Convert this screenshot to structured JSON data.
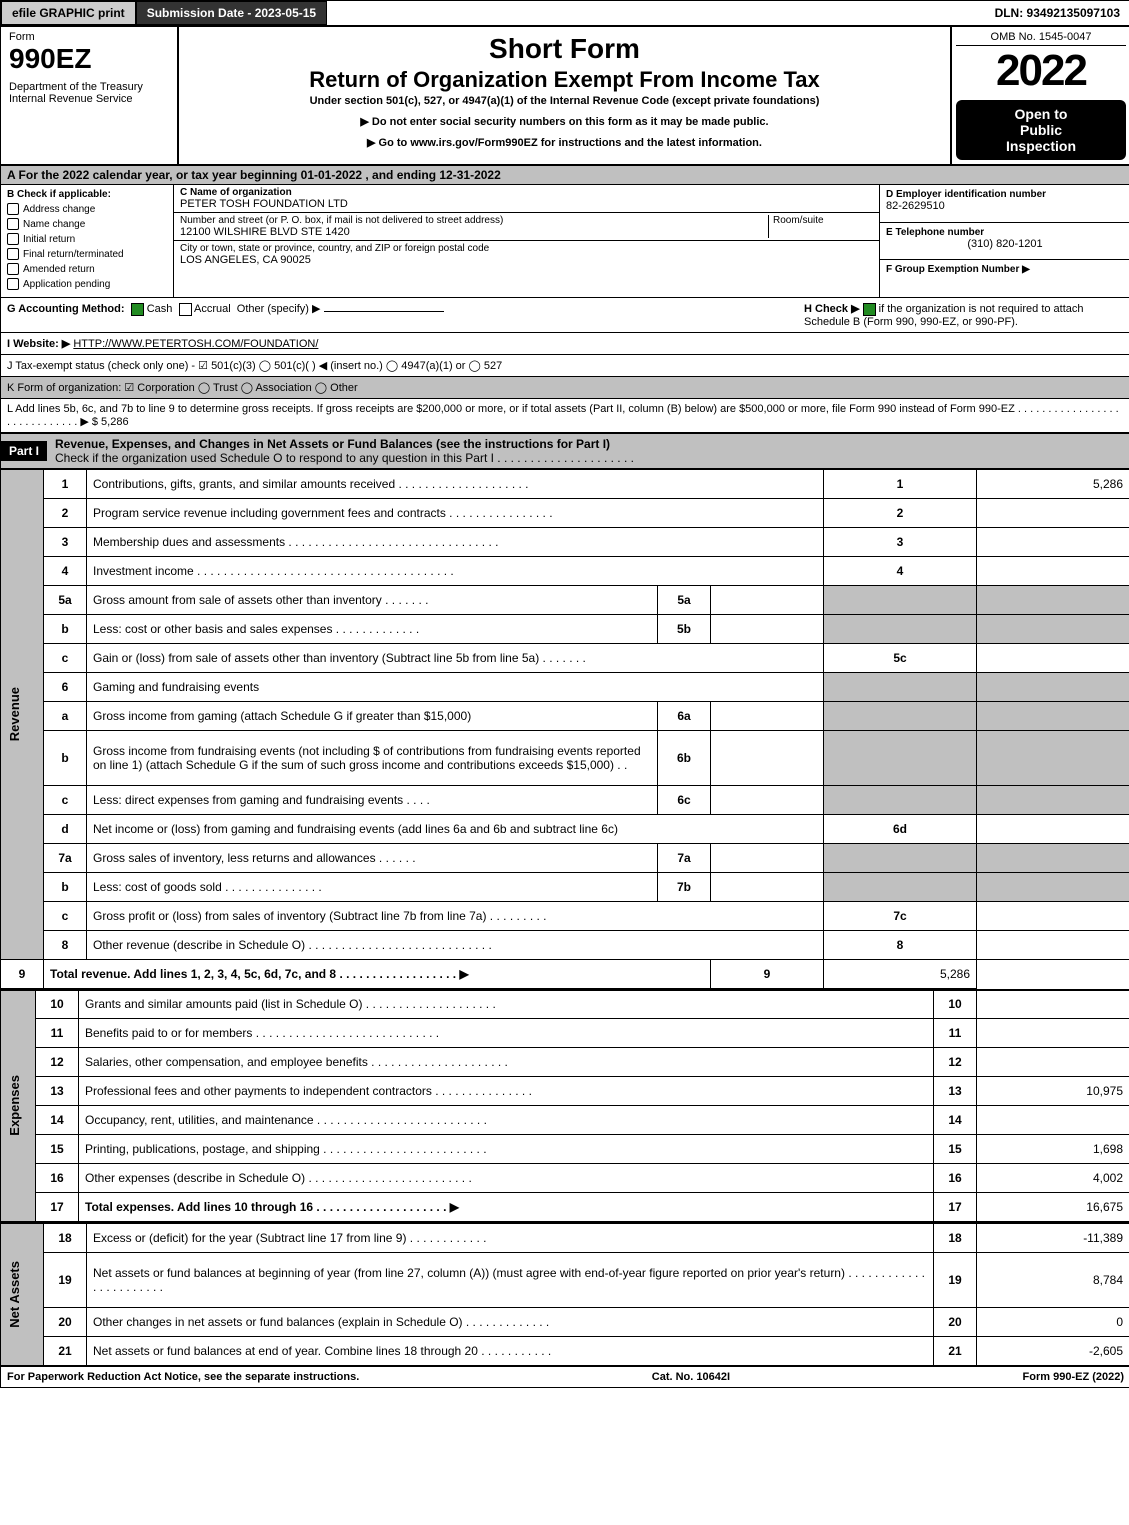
{
  "topbar": {
    "efile_label": "efile GRAPHIC print",
    "submission_label": "Submission Date - 2023-05-15",
    "dln_label": "DLN: 93492135097103"
  },
  "header": {
    "form_word": "Form",
    "form_no": "990EZ",
    "dept": "Department of the Treasury",
    "irs": "Internal Revenue Service",
    "title1": "Short Form",
    "title2": "Return of Organization Exempt From Income Tax",
    "subtitle": "Under section 501(c), 527, or 4947(a)(1) of the Internal Revenue Code (except private foundations)",
    "note1": "▶ Do not enter social security numbers on this form as it may be made public.",
    "note2": "▶ Go to www.irs.gov/Form990EZ for instructions and the latest information.",
    "omb": "OMB No. 1545-0047",
    "year": "2022",
    "open1": "Open to",
    "open2": "Public",
    "open3": "Inspection"
  },
  "row_a": "A  For the 2022 calendar year, or tax year beginning 01-01-2022 , and ending 12-31-2022",
  "section_b": {
    "b_label": "B  Check if applicable:",
    "options": [
      "Address change",
      "Name change",
      "Initial return",
      "Final return/terminated",
      "Amended return",
      "Application pending"
    ],
    "c_label": "C Name of organization",
    "c_value": "PETER TOSH FOUNDATION LTD",
    "street_label": "Number and street (or P. O. box, if mail is not delivered to street address)",
    "street_value": "12100 WILSHIRE BLVD STE 1420",
    "room_label": "Room/suite",
    "city_label": "City or town, state or province, country, and ZIP or foreign postal code",
    "city_value": "LOS ANGELES, CA  90025",
    "d_label": "D Employer identification number",
    "d_value": "82-2629510",
    "e_label": "E Telephone number",
    "e_value": "(310) 820-1201",
    "f_label": "F Group Exemption Number  ▶"
  },
  "g_h": {
    "g_label": "G Accounting Method:",
    "g_cash": "Cash",
    "g_accrual": "Accrual",
    "g_other": "Other (specify) ▶",
    "h_label": "H  Check ▶",
    "h_text": "if the organization is not required to attach Schedule B (Form 990, 990-EZ, or 990-PF)."
  },
  "i": {
    "label": "I Website: ▶",
    "value": "HTTP://WWW.PETERTOSH.COM/FOUNDATION/"
  },
  "j": "J Tax-exempt status (check only one) - ☑ 501(c)(3)  ◯ 501(c)(  ) ◀ (insert no.)  ◯ 4947(a)(1) or  ◯ 527",
  "k": "K Form of organization:  ☑ Corporation  ◯ Trust  ◯ Association  ◯ Other",
  "l": {
    "text": "L Add lines 5b, 6c, and 7b to line 9 to determine gross receipts. If gross receipts are $200,000 or more, or if total assets (Part II, column (B) below) are $500,000 or more, file Form 990 instead of Form 990-EZ . . . . . . . . . . . . . . . . . . . . . . . . . . . . .  ▶ $",
    "amount": "5,286"
  },
  "part1": {
    "header_label": "Part I",
    "title": "Revenue, Expenses, and Changes in Net Assets or Fund Balances (see the instructions for Part I)",
    "check_label": "Check if the organization used Schedule O to respond to any question in this Part I . . . . . . . . . . . . . . . . . . . . .",
    "checked": true
  },
  "sections": {
    "revenue_label": "Revenue",
    "expenses_label": "Expenses",
    "netassets_label": "Net Assets"
  },
  "lines": [
    {
      "n": "1",
      "desc": "Contributions, gifts, grants, and similar amounts received . . . . . . . . . . . . . . . . . . . .",
      "box": "1",
      "amt": "5,286"
    },
    {
      "n": "2",
      "desc": "Program service revenue including government fees and contracts . . . . . . . . . . . . . . . .",
      "box": "2",
      "amt": ""
    },
    {
      "n": "3",
      "desc": "Membership dues and assessments . . . . . . . . . . . . . . . . . . . . . . . . . . . . . . . .",
      "box": "3",
      "amt": ""
    },
    {
      "n": "4",
      "desc": "Investment income . . . . . . . . . . . . . . . . . . . . . . . . . . . . . . . . . . . . . . .",
      "box": "4",
      "amt": ""
    },
    {
      "n": "5a",
      "desc": "Gross amount from sale of assets other than inventory . . . . . . .",
      "sub": "5a",
      "subamt": "",
      "box": "",
      "amt": "",
      "grey": true
    },
    {
      "n": "b",
      "desc": "Less: cost or other basis and sales expenses . . . . . . . . . . . . .",
      "sub": "5b",
      "subamt": "",
      "box": "",
      "amt": "",
      "grey": true
    },
    {
      "n": "c",
      "desc": "Gain or (loss) from sale of assets other than inventory (Subtract line 5b from line 5a) . . . . . . .",
      "box": "5c",
      "amt": ""
    },
    {
      "n": "6",
      "desc": "Gaming and fundraising events",
      "box": "",
      "amt": "",
      "grey": true
    },
    {
      "n": "a",
      "desc": "Gross income from gaming (attach Schedule G if greater than $15,000)",
      "sub": "6a",
      "subamt": "",
      "box": "",
      "amt": "",
      "grey": true
    },
    {
      "n": "b",
      "desc": "Gross income from fundraising events (not including $                    of contributions from fundraising events reported on line 1) (attach Schedule G if the sum of such gross income and contributions exceeds $15,000)   .  .",
      "sub": "6b",
      "subamt": "",
      "box": "",
      "amt": "",
      "grey": true,
      "tall": true
    },
    {
      "n": "c",
      "desc": "Less: direct expenses from gaming and fundraising events  .  .  .  .",
      "sub": "6c",
      "subamt": "",
      "box": "",
      "amt": "",
      "grey": true
    },
    {
      "n": "d",
      "desc": "Net income or (loss) from gaming and fundraising events (add lines 6a and 6b and subtract line 6c)",
      "box": "6d",
      "amt": ""
    },
    {
      "n": "7a",
      "desc": "Gross sales of inventory, less returns and allowances . . . . . .",
      "sub": "7a",
      "subamt": "",
      "box": "",
      "amt": "",
      "grey": true
    },
    {
      "n": "b",
      "desc": "Less: cost of goods sold      .  .  .  .  .  .  .  .  .  .  .  .  .  .  .",
      "sub": "7b",
      "subamt": "",
      "box": "",
      "amt": "",
      "grey": true
    },
    {
      "n": "c",
      "desc": "Gross profit or (loss) from sales of inventory (Subtract line 7b from line 7a) . . . . . . . . .",
      "box": "7c",
      "amt": ""
    },
    {
      "n": "8",
      "desc": "Other revenue (describe in Schedule O) . . . . . . . . . . . . . . . . . . . . . . . . . . . .",
      "box": "8",
      "amt": ""
    },
    {
      "n": "9",
      "desc": "Total revenue. Add lines 1, 2, 3, 4, 5c, 6d, 7c, and 8  . . . . . . . . . . . . . . . . . .   ▶",
      "box": "9",
      "amt": "5,286",
      "bold": true
    }
  ],
  "expense_lines": [
    {
      "n": "10",
      "desc": "Grants and similar amounts paid (list in Schedule O) . . . . . . . . . . . . . . . . . . . .",
      "box": "10",
      "amt": ""
    },
    {
      "n": "11",
      "desc": "Benefits paid to or for members       . . . . . . . . . . . . . . . . . . . . . . . . . . . .",
      "box": "11",
      "amt": ""
    },
    {
      "n": "12",
      "desc": "Salaries, other compensation, and employee benefits . . . . . . . . . . . . . . . . . . . . .",
      "box": "12",
      "amt": ""
    },
    {
      "n": "13",
      "desc": "Professional fees and other payments to independent contractors . . . . . . . . . . . . . . .",
      "box": "13",
      "amt": "10,975"
    },
    {
      "n": "14",
      "desc": "Occupancy, rent, utilities, and maintenance . . . . . . . . . . . . . . . . . . . . . . . . . .",
      "box": "14",
      "amt": ""
    },
    {
      "n": "15",
      "desc": "Printing, publications, postage, and shipping . . . . . . . . . . . . . . . . . . . . . . . . .",
      "box": "15",
      "amt": "1,698"
    },
    {
      "n": "16",
      "desc": "Other expenses (describe in Schedule O)    . . . . . . . . . . . . . . . . . . . . . . . . .",
      "box": "16",
      "amt": "4,002"
    },
    {
      "n": "17",
      "desc": "Total expenses. Add lines 10 through 16     . . . . . . . . . . . . . . . . . . . .    ▶",
      "box": "17",
      "amt": "16,675",
      "bold": true
    }
  ],
  "netasset_lines": [
    {
      "n": "18",
      "desc": "Excess or (deficit) for the year (Subtract line 17 from line 9)        .  .  .  .  .  .  .  .  .  .  .  .",
      "box": "18",
      "amt": "-11,389"
    },
    {
      "n": "19",
      "desc": "Net assets or fund balances at beginning of year (from line 27, column (A)) (must agree with end-of-year figure reported on prior year's return) . . . . . . . . . . . . . . . . . . . . . . .",
      "box": "19",
      "amt": "8,784",
      "tall": true
    },
    {
      "n": "20",
      "desc": "Other changes in net assets or fund balances (explain in Schedule O) . . . . . . . . . . . . .",
      "box": "20",
      "amt": "0"
    },
    {
      "n": "21",
      "desc": "Net assets or fund balances at end of year. Combine lines 18 through 20 . . . . . . . . . . .",
      "box": "21",
      "amt": "-2,605"
    }
  ],
  "footer": {
    "left": "For Paperwork Reduction Act Notice, see the separate instructions.",
    "mid": "Cat. No. 10642I",
    "right": "Form 990-EZ (2022)"
  }
}
